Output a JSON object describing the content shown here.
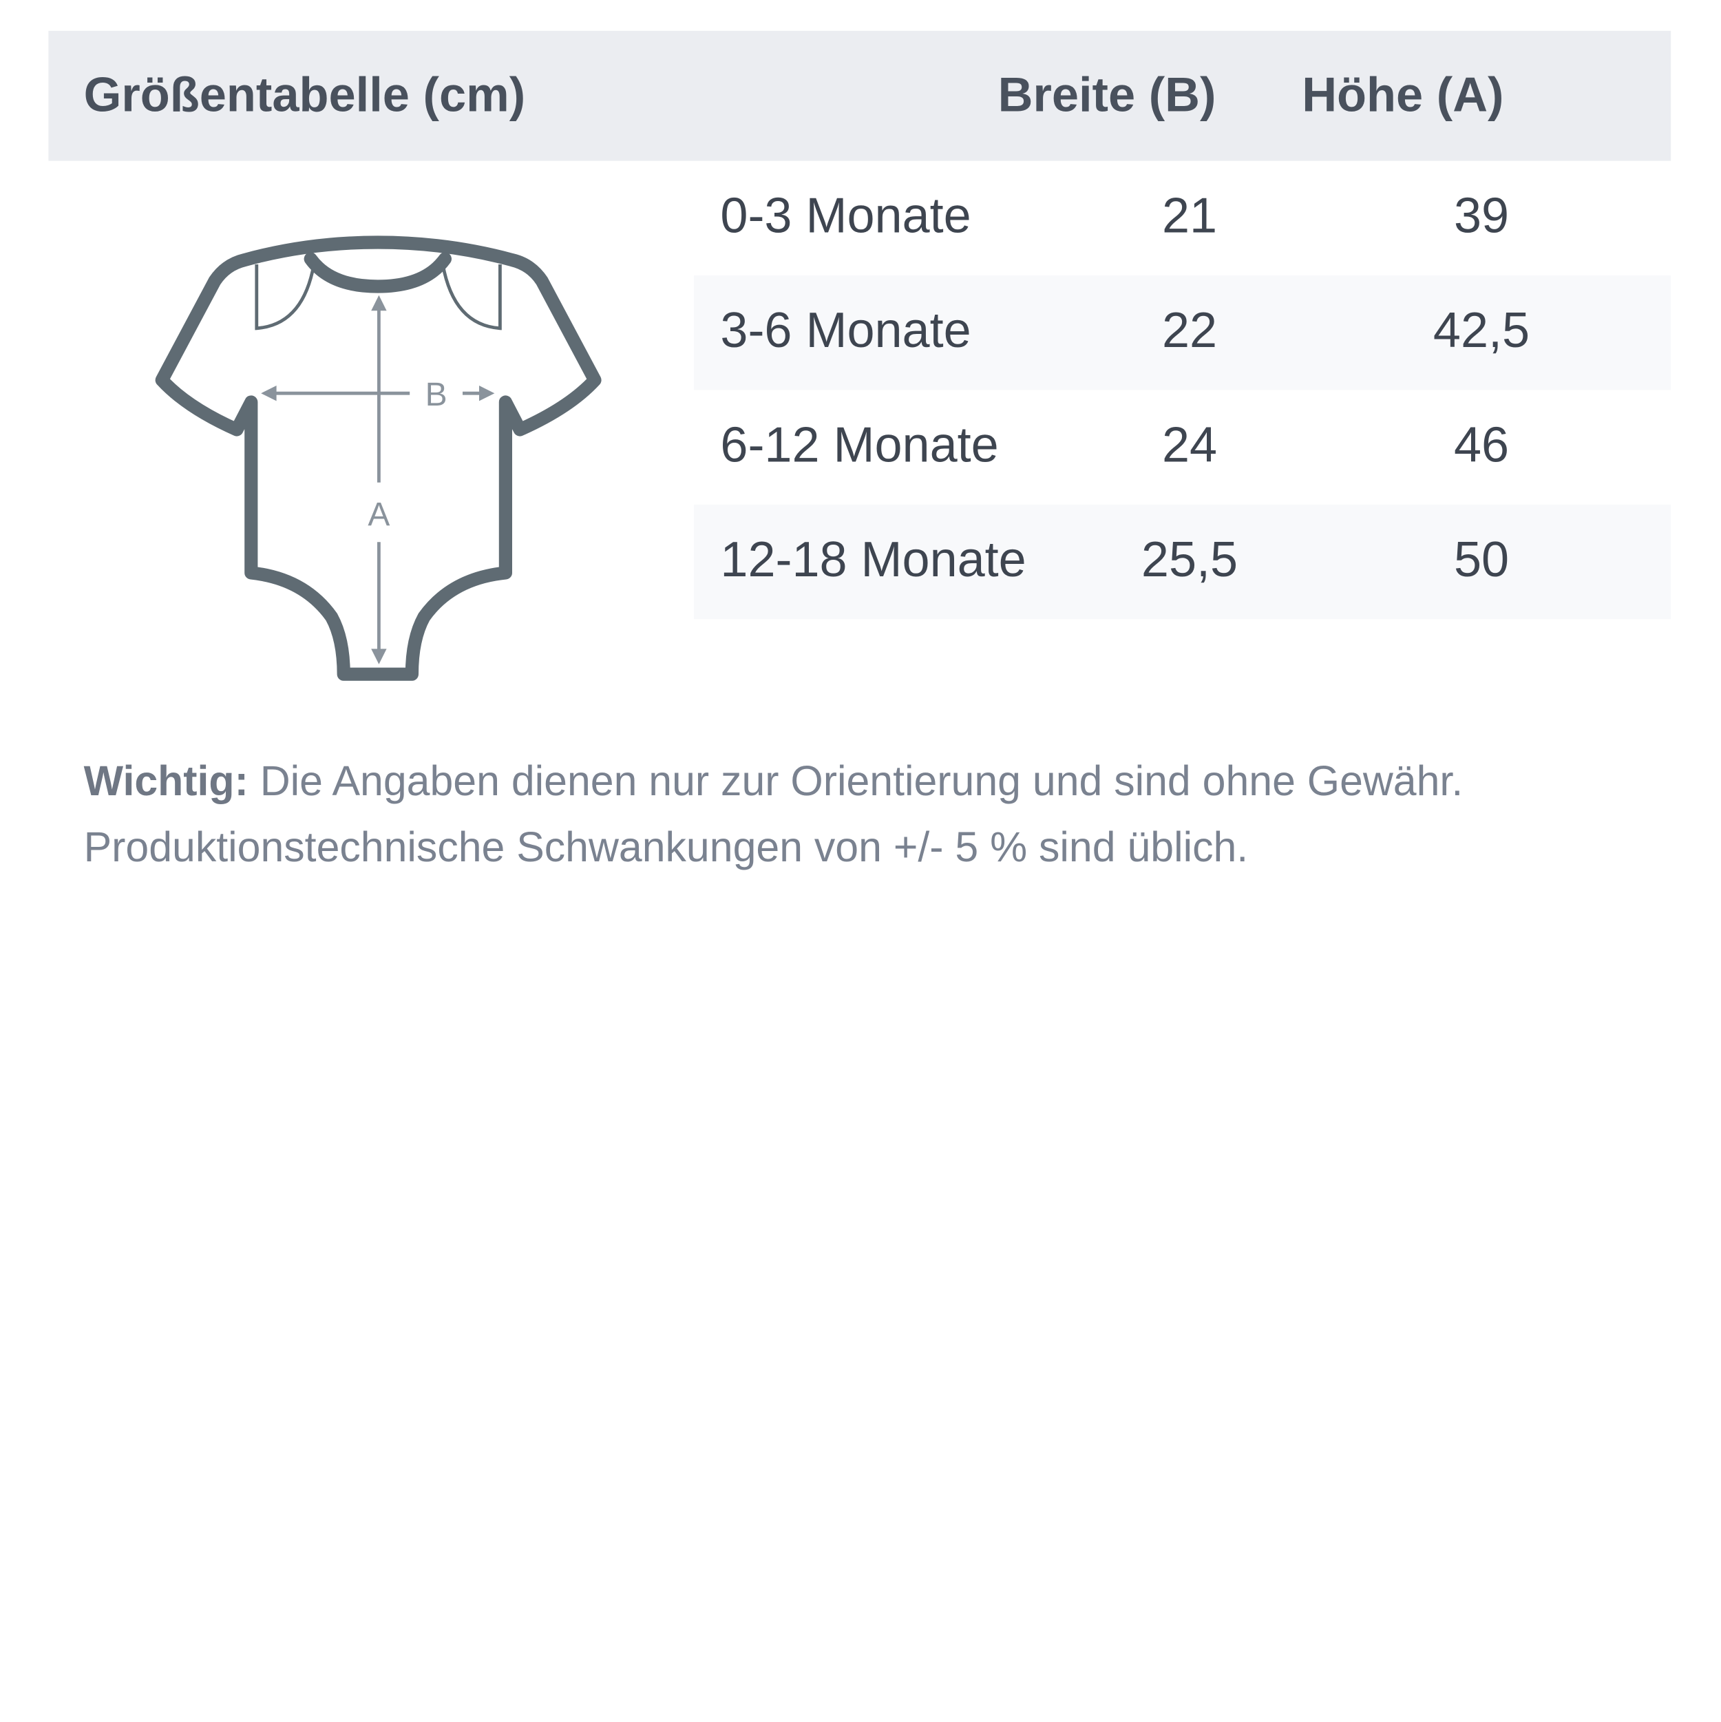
{
  "table": {
    "title": "Größentabelle (cm)",
    "columns": [
      "Breite (B)",
      "Höhe (A)"
    ],
    "rows": [
      {
        "size": "0-3 Monate",
        "breite": "21",
        "hoehe": "39"
      },
      {
        "size": "3-6 Monate",
        "breite": "22",
        "hoehe": "42,5"
      },
      {
        "size": "6-12 Monate",
        "breite": "24",
        "hoehe": "46"
      },
      {
        "size": "12-18 Monate",
        "breite": "25,5",
        "hoehe": "50"
      }
    ]
  },
  "diagram": {
    "label_b": "B",
    "label_a": "A",
    "icon": "baby-bodysuit-icon",
    "outline_color": "#5f6b73",
    "arrow_color": "#8a939c"
  },
  "note": {
    "bold": "Wichtig:",
    "line1": " Die Angaben dienen nur zur Orientierung und sind ohne Gewähr.",
    "line2": "Produktionstechnische Schwankungen von +/- 5 % sind üblich."
  },
  "colors": {
    "header_bg": "#ebedf1",
    "row_shade": "#f8f9fb"
  }
}
